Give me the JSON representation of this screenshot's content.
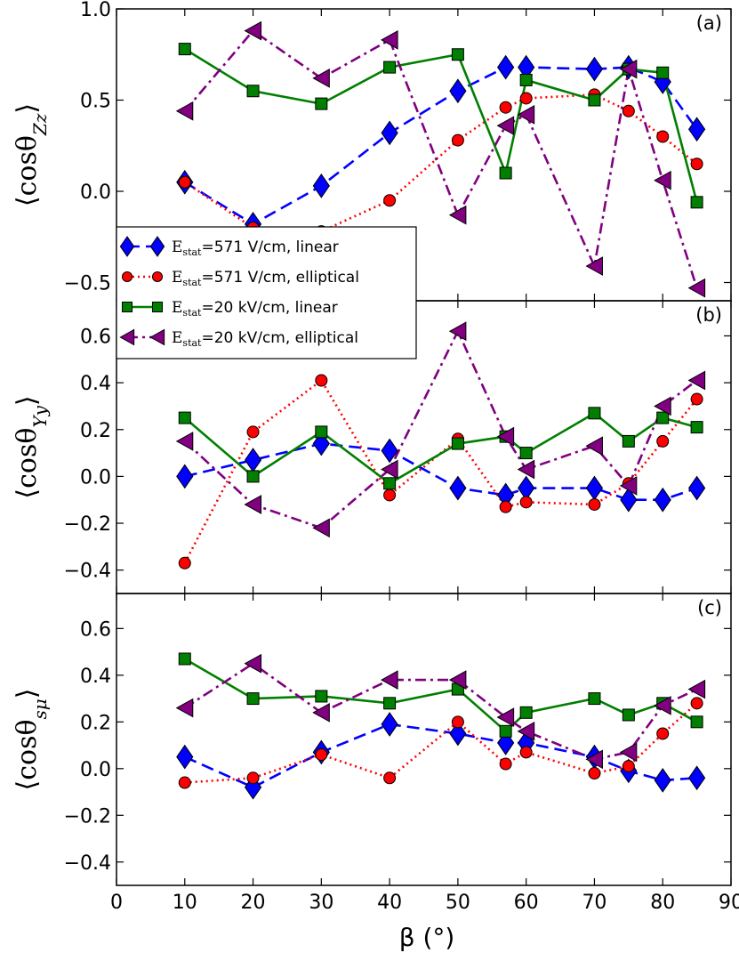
{
  "colors": {
    "e571_linear": "#0000ff",
    "e571_elliptical": "#ff0000",
    "e20k_linear": "#007f00",
    "e20k_elliptical": "#800080"
  },
  "x_axis": {
    "label": "β (°)",
    "ticks": [
      0,
      10,
      20,
      30,
      40,
      50,
      60,
      70,
      80,
      90
    ],
    "xlim": [
      0,
      90
    ]
  },
  "legend": {
    "entries": [
      {
        "prefix": "E",
        "subscript": "stat",
        "rest": "=571 V/cm, linear"
      },
      {
        "prefix": "E",
        "subscript": "stat",
        "rest": "=571 V/cm, elliptical"
      },
      {
        "prefix": "E",
        "subscript": "stat",
        "rest": "=20 kV/cm, linear"
      },
      {
        "prefix": "E",
        "subscript": "stat",
        "rest": "=20 kV/cm, elliptical"
      }
    ]
  },
  "chart_data": [
    {
      "type": "line",
      "panel": "(a)",
      "ylabel": "⟨cosθZz⟩",
      "ylabel_main": "⟨cosθ",
      "ylabel_sub": "Zz",
      "ylabel_close": "⟩",
      "ylim": [
        -0.6,
        1.0
      ],
      "yticks": [
        "1.0",
        "0.5",
        "0.0",
        "−0.5"
      ],
      "ytick_values": [
        1.0,
        0.5,
        0.0,
        -0.5
      ],
      "x": [
        10,
        20,
        30,
        40,
        50,
        57,
        60,
        70,
        75,
        80,
        85
      ],
      "series": [
        {
          "name": "Estat=571 V/cm, linear",
          "values": [
            0.05,
            -0.18,
            0.03,
            0.32,
            0.55,
            0.68,
            0.68,
            0.67,
            0.68,
            0.6,
            0.34
          ]
        },
        {
          "name": "Estat=571 V/cm, elliptical",
          "values": [
            0.05,
            -0.2,
            -0.22,
            -0.05,
            0.28,
            0.46,
            0.51,
            0.53,
            0.44,
            0.3,
            0.15
          ]
        },
        {
          "name": "Estat=20 kV/cm, linear",
          "values": [
            0.78,
            0.55,
            0.48,
            0.68,
            0.75,
            0.1,
            0.61,
            0.5,
            0.67,
            0.65,
            -0.06
          ]
        },
        {
          "name": "Estat=20 kV/cm, elliptical",
          "values": [
            0.44,
            0.88,
            0.62,
            0.83,
            -0.13,
            0.36,
            0.42,
            -0.41,
            0.67,
            0.06,
            -0.53
          ]
        }
      ]
    },
    {
      "type": "line",
      "panel": "(b)",
      "ylabel": "⟨cosθYy⟩",
      "ylabel_main": "⟨cosθ",
      "ylabel_sub": "Yy",
      "ylabel_close": "⟩",
      "ylim": [
        -0.5,
        0.75
      ],
      "yticks": [
        "0.6",
        "0.4",
        "0.2",
        "0.0",
        "−0.2",
        "−0.4"
      ],
      "ytick_values": [
        0.6,
        0.4,
        0.2,
        0.0,
        -0.2,
        -0.4
      ],
      "x": [
        10,
        20,
        30,
        40,
        50,
        57,
        60,
        70,
        75,
        80,
        85
      ],
      "series": [
        {
          "name": "Estat=571 V/cm, linear",
          "values": [
            0.0,
            0.07,
            0.14,
            0.11,
            -0.05,
            -0.08,
            -0.05,
            -0.05,
            -0.1,
            -0.1,
            -0.05
          ]
        },
        {
          "name": "Estat=571 V/cm, elliptical",
          "values": [
            -0.37,
            0.19,
            0.41,
            -0.08,
            0.16,
            -0.13,
            -0.11,
            -0.12,
            -0.03,
            0.15,
            0.33
          ]
        },
        {
          "name": "Estat=20 kV/cm, linear",
          "values": [
            0.25,
            0.0,
            0.19,
            -0.03,
            0.14,
            0.17,
            0.1,
            0.27,
            0.15,
            0.25,
            0.21
          ]
        },
        {
          "name": "Estat=20 kV/cm, elliptical",
          "values": [
            0.15,
            -0.12,
            -0.22,
            0.03,
            0.62,
            0.17,
            0.03,
            0.13,
            -0.04,
            0.3,
            0.41
          ]
        }
      ]
    },
    {
      "type": "line",
      "panel": "(c)",
      "ylabel": "⟨cosθsμ⟩",
      "ylabel_main": "⟨cosθ",
      "ylabel_sub": "sμ",
      "ylabel_close": "⟩",
      "ylim": [
        -0.5,
        0.75
      ],
      "yticks": [
        "0.6",
        "0.4",
        "0.2",
        "0.0",
        "−0.2",
        "−0.4"
      ],
      "ytick_values": [
        0.6,
        0.4,
        0.2,
        0.0,
        -0.2,
        -0.4
      ],
      "x": [
        10,
        20,
        30,
        40,
        50,
        57,
        60,
        70,
        75,
        80,
        85
      ],
      "series": [
        {
          "name": "Estat=571 V/cm, linear",
          "values": [
            0.05,
            -0.08,
            0.07,
            0.19,
            0.15,
            0.11,
            0.11,
            0.05,
            -0.01,
            -0.05,
            -0.04
          ]
        },
        {
          "name": "Estat=571 V/cm, elliptical",
          "values": [
            -0.06,
            -0.04,
            0.06,
            -0.04,
            0.2,
            0.02,
            0.07,
            -0.02,
            0.01,
            0.15,
            0.28
          ]
        },
        {
          "name": "Estat=20 kV/cm, linear",
          "values": [
            0.47,
            0.3,
            0.31,
            0.28,
            0.34,
            0.16,
            0.24,
            0.3,
            0.23,
            0.28,
            0.2
          ]
        },
        {
          "name": "Estat=20 kV/cm, elliptical",
          "values": [
            0.26,
            0.45,
            0.24,
            0.38,
            0.38,
            0.22,
            0.16,
            0.04,
            0.07,
            0.27,
            0.34
          ]
        }
      ]
    }
  ]
}
